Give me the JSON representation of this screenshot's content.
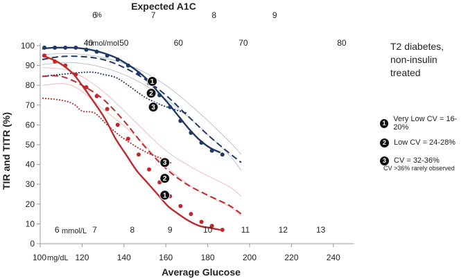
{
  "chart_data": {
    "type": "line",
    "title": "",
    "xlabel": "Average Glucose",
    "x_unit_label": "mg/dL",
    "ylabel_parts": [
      {
        "text": "TIR",
        "color": "#1f3864"
      },
      {
        "text": " and ",
        "color": "#222222"
      },
      {
        "text": "TITR",
        "color": "#c0282b"
      },
      {
        "text": " (%)",
        "color": "#222222"
      }
    ],
    "xlim": [
      100,
      250
    ],
    "ylim": [
      0,
      100
    ],
    "x_ticks": [
      100,
      120,
      140,
      160,
      180,
      200,
      220,
      240
    ],
    "y_ticks": [
      0,
      10,
      20,
      30,
      40,
      50,
      60,
      70,
      80,
      90,
      100
    ],
    "grid": false,
    "top_axis": {
      "title": "Expected A1C",
      "unit_label": "%",
      "ticks": [
        {
          "label": "6",
          "x": 126
        },
        {
          "label": "7",
          "x": 154
        },
        {
          "label": "8",
          "x": 183
        },
        {
          "label": "9",
          "x": 212
        }
      ]
    },
    "mmol_mol_scale": {
      "unit_label": "mmol/mol",
      "ticks": [
        {
          "label": "40",
          "x": 123
        },
        {
          "label": "50",
          "x": 140
        },
        {
          "label": "60",
          "x": 166
        },
        {
          "label": "70",
          "x": 197
        },
        {
          "label": "80",
          "x": 244
        }
      ]
    },
    "mmol_l_scale": {
      "unit_label": "mmol/L",
      "ticks": [
        {
          "label": "6",
          "x": 108
        },
        {
          "label": "7",
          "x": 126
        },
        {
          "label": "8",
          "x": 144
        },
        {
          "label": "9",
          "x": 162
        },
        {
          "label": "10",
          "x": 180
        },
        {
          "label": "11",
          "x": 198
        },
        {
          "label": "12",
          "x": 216
        },
        {
          "label": "13",
          "x": 234
        }
      ]
    },
    "series": [
      {
        "name": "TIR Very Low CV",
        "metric": "TIR",
        "cv_group": 1,
        "color": "#1f3864",
        "style": "solid-markers",
        "x": [
          101,
          106,
          111,
          116,
          121,
          126,
          131,
          136,
          141,
          146,
          151,
          156,
          161,
          166,
          171,
          176,
          181,
          186
        ],
        "y": [
          98.5,
          99,
          99,
          99,
          98.5,
          97.5,
          96,
          94,
          91,
          87.5,
          83,
          77,
          71,
          64.5,
          58,
          52.5,
          48.5,
          46
        ],
        "marker_x": [
          102,
          107,
          112,
          117,
          122,
          127,
          132,
          137,
          142,
          147,
          152,
          157,
          162,
          167,
          172,
          177,
          182,
          187
        ],
        "marker_y": [
          99,
          99,
          99,
          99,
          98,
          97,
          95,
          93,
          90,
          86,
          81,
          75,
          69,
          62,
          56,
          51,
          47,
          45
        ]
      },
      {
        "name": "TIR Low CV",
        "metric": "TIR",
        "cv_group": 2,
        "color": "#1f3864",
        "style": "dashed",
        "x": [
          101,
          110,
          120,
          130,
          140,
          150,
          160,
          170,
          180,
          190,
          196
        ],
        "y": [
          93,
          94.5,
          94.5,
          93,
          89,
          83,
          75,
          65,
          55,
          46,
          41
        ]
      },
      {
        "name": "TIR CV 32-36%",
        "metric": "TIR",
        "cv_group": 3,
        "color": "#1f3864",
        "style": "dotted",
        "x": [
          101,
          110,
          120,
          126,
          130,
          136,
          142,
          150,
          158,
          165,
          170
        ],
        "y": [
          84.5,
          85.5,
          86.5,
          86.5,
          85.5,
          84,
          80,
          74,
          70,
          67.5,
          66
        ]
      },
      {
        "name": "TITR Very Low CV",
        "metric": "TITR",
        "cv_group": 1,
        "color": "#c0282b",
        "style": "solid-markers",
        "x": [
          101,
          106,
          111,
          116,
          121,
          126,
          131,
          136,
          141,
          146,
          151,
          156,
          161,
          166,
          171,
          176,
          181,
          186
        ],
        "y": [
          95,
          93,
          90,
          85.5,
          78.5,
          71,
          63,
          53,
          45,
          37,
          31,
          25,
          19,
          15,
          11.5,
          9,
          8,
          7
        ],
        "marker_x": [
          102,
          107,
          112,
          117,
          122,
          127,
          132,
          137,
          142,
          147,
          152,
          157,
          162,
          167,
          172,
          177,
          182,
          187
        ],
        "marker_y": [
          95,
          92,
          90,
          85.5,
          79,
          74.5,
          68,
          60,
          53,
          45,
          37.5,
          31,
          24,
          19,
          15,
          11,
          9,
          7
        ]
      },
      {
        "name": "TITR Low CV",
        "metric": "TITR",
        "cv_group": 2,
        "color": "#c0282b",
        "style": "dashed",
        "x": [
          101,
          110,
          120,
          130,
          140,
          150,
          160,
          170,
          180,
          190,
          196
        ],
        "y": [
          84.5,
          84.5,
          80,
          73,
          62,
          49,
          38,
          30,
          24.5,
          19.5,
          15
        ]
      },
      {
        "name": "TITR CV 32-36%",
        "metric": "TITR",
        "cv_group": 3,
        "color": "#c0282b",
        "style": "dotted",
        "x": [
          101,
          110,
          116,
          120,
          126,
          132,
          140,
          150,
          158,
          163
        ],
        "y": [
          73.5,
          72.5,
          70.5,
          67,
          66,
          60,
          53,
          46.5,
          43,
          40.5
        ]
      }
    ],
    "range_lines": [
      {
        "color": "#a9b6c9",
        "x": [
          101,
          115,
          130,
          145,
          160,
          175,
          190,
          196
        ],
        "y": [
          95.5,
          96,
          94,
          89,
          80,
          67,
          52,
          45
        ]
      },
      {
        "color": "#a9b6c9",
        "x": [
          101,
          115,
          130,
          145,
          160,
          175,
          190,
          196
        ],
        "y": [
          90.5,
          91.5,
          89,
          83,
          73,
          60,
          45,
          37
        ]
      },
      {
        "color": "#efaeb0",
        "x": [
          101,
          115,
          130,
          145,
          160,
          175,
          190,
          196
        ],
        "y": [
          89,
          87,
          77,
          62,
          47,
          37,
          29,
          24
        ]
      },
      {
        "color": "#efaeb0",
        "x": [
          101,
          115,
          130,
          145,
          160,
          175,
          190,
          196
        ],
        "y": [
          80,
          80,
          68,
          55,
          39,
          27,
          19,
          14
        ]
      }
    ],
    "annotations": [
      {
        "label": "1",
        "x": 153.5,
        "y": 82
      },
      {
        "label": "2",
        "x": 153,
        "y": 76
      },
      {
        "label": "3",
        "x": 154,
        "y": 69
      },
      {
        "label": "3",
        "x": 159.5,
        "y": 41
      },
      {
        "label": "2",
        "x": 159.5,
        "y": 33
      },
      {
        "label": "1",
        "x": 159.5,
        "y": 24.5
      }
    ]
  },
  "side_note": {
    "line1": "T2 diabetes,",
    "line2": "non-insulin treated"
  },
  "legend": {
    "items": [
      {
        "number": "1",
        "label": "Very Low CV = 16-20%"
      },
      {
        "number": "2",
        "label": "Low CV = 24-28%"
      },
      {
        "number": "3",
        "label": "CV = 32-36%"
      }
    ],
    "footnote": "CV >36% rarely observed"
  }
}
